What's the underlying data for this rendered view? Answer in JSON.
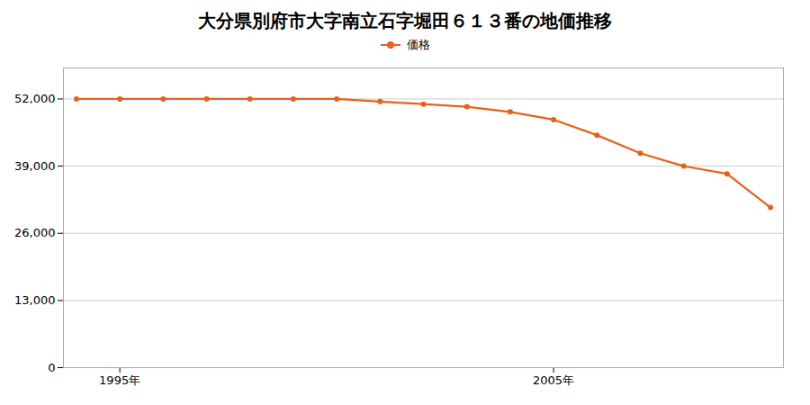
{
  "chart_data": {
    "type": "line",
    "title": "大分県別府市大字南立石字堀田６１３番の地価推移",
    "x": [
      1994,
      1995,
      1996,
      1997,
      1998,
      1999,
      2000,
      2001,
      2002,
      2003,
      2004,
      2005,
      2006,
      2007,
      2008,
      2009,
      2010
    ],
    "series": [
      {
        "name": "価格",
        "color": "#e8611a",
        "marker": "circle",
        "values": [
          52000,
          52000,
          52000,
          52000,
          52000,
          52000,
          52000,
          51500,
          51000,
          50500,
          49500,
          48000,
          45000,
          41500,
          39000,
          37500,
          31000
        ]
      }
    ],
    "xlim": [
      1993.7,
      2010.3
    ],
    "xticks": [
      {
        "value": 1995,
        "label": "1995年"
      },
      {
        "value": 2005,
        "label": "2005年"
      }
    ],
    "ylim": [
      0,
      58000
    ],
    "yticks": [
      0,
      {
        "value": 13000,
        "label": "13,000"
      },
      {
        "value": 26000,
        "label": "26,000"
      },
      {
        "value": 39000,
        "label": "39,000"
      },
      {
        "value": 52000,
        "label": "52,000"
      }
    ],
    "grid": true,
    "legend": "top"
  }
}
